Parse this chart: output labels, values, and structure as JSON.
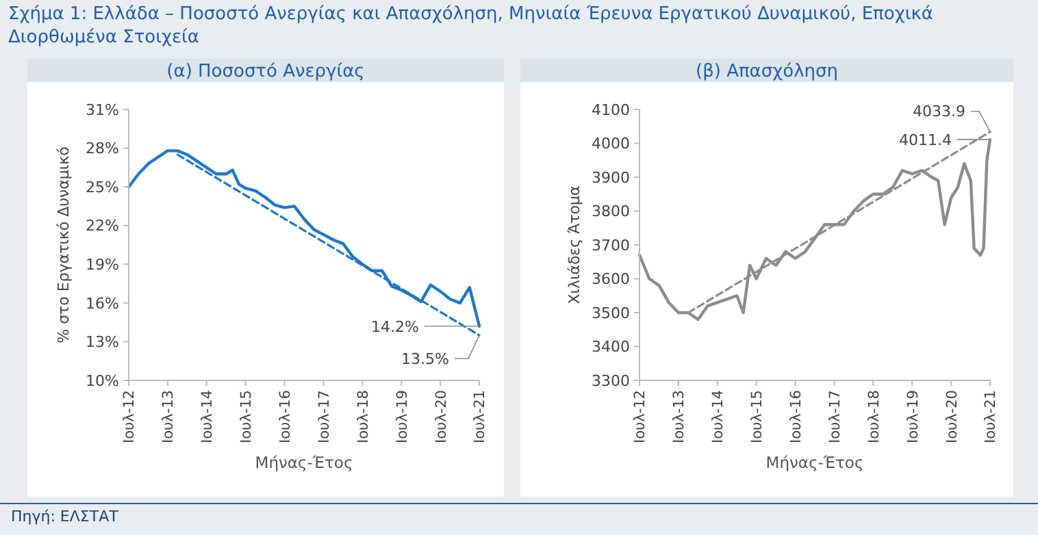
{
  "chart_data": [
    {
      "type": "line",
      "title": "Σχήμα 1: Ελλάδα – Ποσοστό Ανεργίας και Απασχόληση, Μηνιαία Έρευνα Εργατικού Δυναμικού, Εποχικά Διορθωμένα Στοιχεία",
      "subtitle": "(α) Ποσοστό Ανεργίας",
      "xlabel": "Μήνας-Έτος",
      "ylabel": "% στο Εργατικό Δυναμικό",
      "series": [
        {
          "color": "#1f78c8",
          "line_style": "solid",
          "x": [
            "2012-07",
            "2012-10",
            "2013-01",
            "2013-04",
            "2013-07",
            "2013-10",
            "2014-01",
            "2014-04",
            "2014-07",
            "2014-10",
            "2015-01",
            "2015-03",
            "2015-05",
            "2015-07",
            "2015-10",
            "2016-01",
            "2016-04",
            "2016-07",
            "2016-10",
            "2017-01",
            "2017-04",
            "2017-07",
            "2017-10",
            "2018-01",
            "2018-04",
            "2018-07",
            "2018-10",
            "2019-01",
            "2019-04",
            "2019-07",
            "2019-10",
            "2020-01",
            "2020-04",
            "2020-07",
            "2020-10",
            "2021-01",
            "2021-04",
            "2021-07"
          ],
          "values": [
            25.0,
            26.0,
            26.8,
            27.3,
            27.8,
            27.8,
            27.5,
            27.0,
            26.5,
            26.0,
            26.0,
            26.3,
            25.2,
            24.9,
            24.7,
            24.2,
            23.6,
            23.4,
            23.5,
            22.5,
            21.7,
            21.3,
            20.9,
            20.6,
            19.6,
            19.0,
            18.5,
            18.5,
            17.3,
            17.0,
            16.6,
            16.1,
            17.4,
            16.9,
            16.3,
            16.0,
            17.2,
            14.2
          ]
        },
        {
          "type": "line",
          "color": "#1f78c8",
          "line_style": "dashed",
          "x": [
            "2013-10",
            "2021-07"
          ],
          "values": [
            27.5,
            13.5
          ]
        }
      ],
      "xlim": [
        "2012-07",
        "2021-07"
      ],
      "xticks": [
        {
          "value": "2012-07",
          "label": "Ιουλ-12"
        },
        {
          "value": "2013-07",
          "label": "Ιουλ-13"
        },
        {
          "value": "2014-07",
          "label": "Ιουλ-14"
        },
        {
          "value": "2015-07",
          "label": "Ιουλ-15"
        },
        {
          "value": "2016-07",
          "label": "Ιουλ-16"
        },
        {
          "value": "2017-07",
          "label": "Ιουλ-17"
        },
        {
          "value": "2018-07",
          "label": "Ιουλ-18"
        },
        {
          "value": "2019-07",
          "label": "Ιουλ-19"
        },
        {
          "value": "2020-07",
          "label": "Ιουλ-20"
        },
        {
          "value": "2021-07",
          "label": "Ιουλ-21"
        }
      ],
      "ylim": [
        10,
        31
      ],
      "yticks": [
        {
          "value": 10,
          "label": "10%"
        },
        {
          "value": 13,
          "label": "13%"
        },
        {
          "value": 16,
          "label": "16%"
        },
        {
          "value": 19,
          "label": "19%"
        },
        {
          "value": 22,
          "label": "22%"
        },
        {
          "value": 25,
          "label": "25%"
        },
        {
          "value": 28,
          "label": "28%"
        },
        {
          "value": 31,
          "label": "31%"
        }
      ],
      "annotations": [
        {
          "text": "14.2%",
          "x": "2021-07",
          "y": 14.2
        },
        {
          "text": "13.5%",
          "x": "2021-07",
          "y": 13.5
        }
      ],
      "grid": false
    },
    {
      "type": "line",
      "subtitle": "(β) Απασχόληση",
      "xlabel": "Μήνας-Έτος",
      "ylabel": "Χιλιάδες Άτομα",
      "series": [
        {
          "color": "#8c8c8c",
          "line_style": "solid",
          "x": [
            "2012-07",
            "2012-10",
            "2013-01",
            "2013-04",
            "2013-07",
            "2013-10",
            "2014-01",
            "2014-04",
            "2014-07",
            "2014-10",
            "2015-01",
            "2015-03",
            "2015-05",
            "2015-07",
            "2015-10",
            "2016-01",
            "2016-04",
            "2016-07",
            "2016-10",
            "2017-01",
            "2017-04",
            "2017-07",
            "2017-10",
            "2018-01",
            "2018-04",
            "2018-07",
            "2018-10",
            "2019-01",
            "2019-04",
            "2019-07",
            "2019-10",
            "2020-01",
            "2020-03",
            "2020-05",
            "2020-07",
            "2020-09",
            "2020-11",
            "2021-01",
            "2021-02",
            "2021-04",
            "2021-05",
            "2021-06",
            "2021-07"
          ],
          "values": [
            3670,
            3600,
            3580,
            3530,
            3500,
            3500,
            3480,
            3520,
            3530,
            3540,
            3550,
            3500,
            3640,
            3600,
            3660,
            3640,
            3680,
            3660,
            3680,
            3720,
            3760,
            3760,
            3760,
            3800,
            3830,
            3850,
            3850,
            3870,
            3920,
            3910,
            3920,
            3900,
            3890,
            3760,
            3840,
            3870,
            3940,
            3890,
            3690,
            3670,
            3690,
            3950,
            4011.4
          ]
        },
        {
          "type": "line",
          "color": "#8c8c8c",
          "line_style": "dashed",
          "x": [
            "2013-10",
            "2021-07"
          ],
          "values": [
            3500,
            4033.9
          ]
        }
      ],
      "xlim": [
        "2012-07",
        "2021-07"
      ],
      "xticks": [
        {
          "value": "2012-07",
          "label": "Ιουλ-12"
        },
        {
          "value": "2013-07",
          "label": "Ιουλ-13"
        },
        {
          "value": "2014-07",
          "label": "Ιουλ-14"
        },
        {
          "value": "2015-07",
          "label": "Ιουλ-15"
        },
        {
          "value": "2016-07",
          "label": "Ιουλ-16"
        },
        {
          "value": "2017-07",
          "label": "Ιουλ-17"
        },
        {
          "value": "2018-07",
          "label": "Ιουλ-18"
        },
        {
          "value": "2019-07",
          "label": "Ιουλ-19"
        },
        {
          "value": "2020-07",
          "label": "Ιουλ-20"
        },
        {
          "value": "2021-07",
          "label": "Ιουλ-21"
        }
      ],
      "ylim": [
        3300,
        4100
      ],
      "yticks": [
        3300,
        3400,
        3500,
        3600,
        3700,
        3800,
        3900,
        4000,
        4100
      ],
      "annotations": [
        {
          "text": "4011.4",
          "x": "2021-07",
          "y": 4011.4
        },
        {
          "text": "4033.9",
          "x": "2021-07",
          "y": 4033.9
        },
        "Πηγή: ΕΛΣΤΑΤ"
      ],
      "grid": false
    }
  ]
}
